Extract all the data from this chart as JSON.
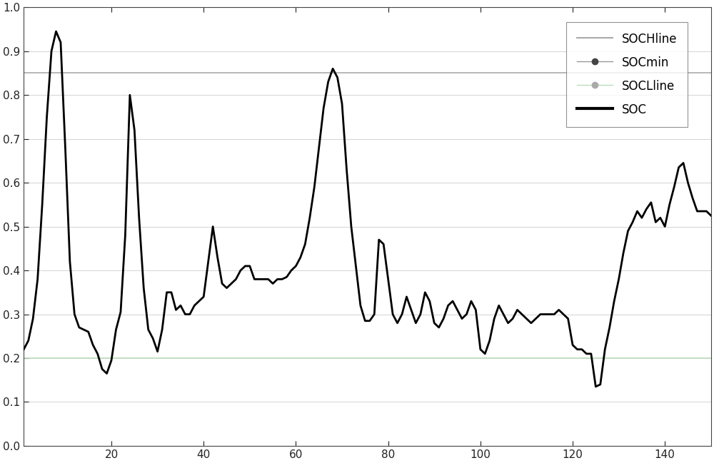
{
  "soch_line": 0.85,
  "socl_line": 0.2,
  "xlim": [
    1,
    150
  ],
  "ylim": [
    0,
    1.0
  ],
  "xticks": [
    20,
    40,
    60,
    80,
    100,
    120,
    140
  ],
  "yticks": [
    0,
    0.1,
    0.2,
    0.3,
    0.4,
    0.5,
    0.6,
    0.7,
    0.8,
    0.9,
    1.0
  ],
  "soch_color": "#aaaaaa",
  "socl_color": "#bbddbb",
  "soc_color": "#000000",
  "socmin_color": "#444444",
  "socmin_line_color": "#999999",
  "socl_dot_color": "#aaaaaa",
  "background_color": "#ffffff",
  "soc_data": [
    0.22,
    0.24,
    0.29,
    0.38,
    0.55,
    0.75,
    0.9,
    0.945,
    0.92,
    0.68,
    0.42,
    0.3,
    0.27,
    0.265,
    0.26,
    0.23,
    0.21,
    0.175,
    0.165,
    0.195,
    0.265,
    0.305,
    0.48,
    0.8,
    0.72,
    0.52,
    0.36,
    0.265,
    0.245,
    0.215,
    0.265,
    0.35,
    0.35,
    0.31,
    0.32,
    0.3,
    0.3,
    0.32,
    0.33,
    0.34,
    0.42,
    0.5,
    0.43,
    0.37,
    0.36,
    0.37,
    0.38,
    0.4,
    0.41,
    0.41,
    0.38,
    0.38,
    0.38,
    0.38,
    0.37,
    0.38,
    0.38,
    0.385,
    0.4,
    0.41,
    0.43,
    0.46,
    0.52,
    0.59,
    0.68,
    0.77,
    0.83,
    0.86,
    0.84,
    0.78,
    0.63,
    0.5,
    0.41,
    0.32,
    0.285,
    0.285,
    0.3,
    0.47,
    0.46,
    0.38,
    0.3,
    0.28,
    0.3,
    0.34,
    0.31,
    0.28,
    0.3,
    0.35,
    0.33,
    0.28,
    0.27,
    0.29,
    0.32,
    0.33,
    0.31,
    0.29,
    0.3,
    0.33,
    0.31,
    0.22,
    0.21,
    0.24,
    0.29,
    0.32,
    0.3,
    0.28,
    0.29,
    0.31,
    0.3,
    0.29,
    0.28,
    0.29,
    0.3,
    0.3,
    0.3,
    0.3,
    0.31,
    0.3,
    0.29,
    0.23,
    0.22,
    0.22,
    0.21,
    0.21,
    0.135,
    0.14,
    0.22,
    0.27,
    0.33,
    0.38,
    0.44,
    0.49,
    0.51,
    0.535,
    0.52,
    0.54,
    0.555,
    0.51,
    0.52,
    0.5,
    0.55,
    0.59,
    0.635,
    0.645,
    0.6,
    0.565,
    0.535,
    0.535,
    0.535,
    0.525
  ]
}
